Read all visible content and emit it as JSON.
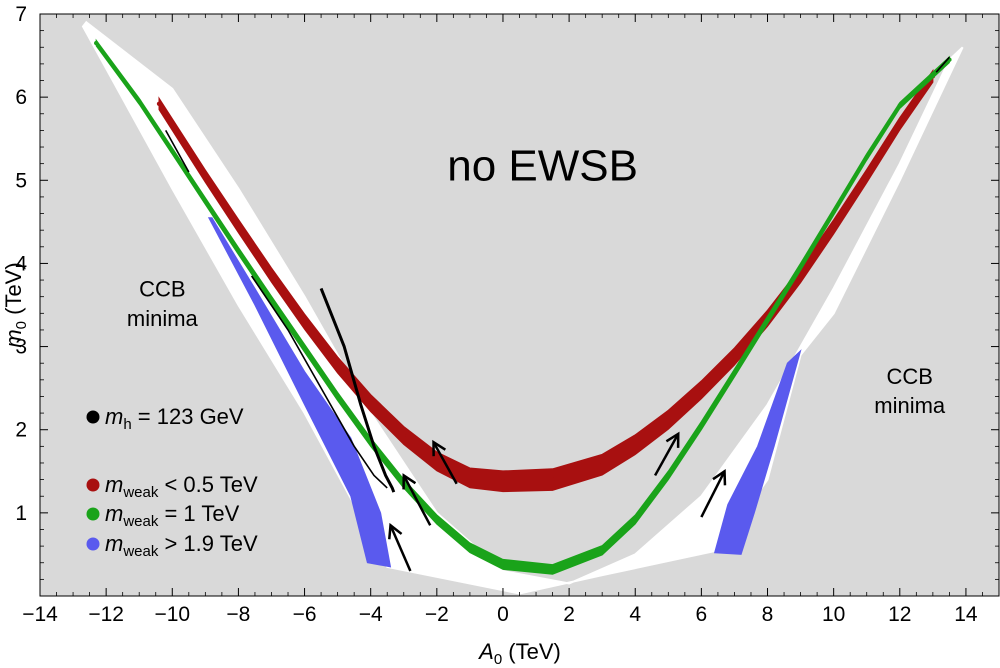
{
  "chart_data": {
    "type": "scatter",
    "title": "",
    "xlabel": {
      "var": "A",
      "sub": "0",
      "unit": " (TeV)"
    },
    "ylabel": {
      "var": "m",
      "sub": "0",
      "unit": " (TeV)"
    },
    "xlim": [
      -14,
      15
    ],
    "ylim": [
      0,
      7
    ],
    "xticks": [
      -14,
      -12,
      -10,
      -8,
      -6,
      -4,
      -2,
      0,
      2,
      4,
      6,
      8,
      10,
      12,
      14
    ],
    "yticks": [
      1,
      2,
      3,
      4,
      5,
      6,
      7
    ],
    "x_tick_labels": [
      "−14",
      "−12",
      "−10",
      "−8",
      "−6",
      "−4",
      "−2",
      "0",
      "2",
      "4",
      "6",
      "8",
      "10",
      "12",
      "14"
    ],
    "y_tick_labels": [
      "1",
      "2",
      "3",
      "4",
      "5",
      "6",
      "7"
    ],
    "regions": [
      {
        "name": "allowed",
        "color": "#ffffff",
        "outline": [
          [
            -12.7,
            6.85
          ],
          [
            -10,
            4.9
          ],
          [
            -8,
            3.5
          ],
          [
            -6,
            2.2
          ],
          [
            -4.5,
            1.1
          ],
          [
            -3.5,
            0.35
          ],
          [
            0.5,
            0.03
          ],
          [
            3,
            0.25
          ],
          [
            6.5,
            0.55
          ],
          [
            8,
            1.4
          ],
          [
            9,
            2.9
          ],
          [
            10,
            3.4
          ],
          [
            12,
            5.0
          ],
          [
            13.9,
            6.6
          ],
          [
            13.5,
            6.45
          ],
          [
            12,
            5.2
          ],
          [
            10,
            3.7
          ],
          [
            8,
            2.3
          ],
          [
            6,
            1.2
          ],
          [
            4,
            0.5
          ],
          [
            2,
            0.15
          ],
          [
            0,
            0.3
          ],
          [
            -2,
            1.0
          ],
          [
            -4,
            2.2
          ],
          [
            -6,
            3.6
          ],
          [
            -8,
            4.9
          ],
          [
            -10,
            6.1
          ],
          [
            -12.6,
            6.9
          ]
        ]
      }
    ],
    "series": [
      {
        "name": "m_weak < 0.5 TeV",
        "color": "#a81010",
        "points": [
          [
            -10.4,
            5.92
          ],
          [
            -9,
            5.05
          ],
          [
            -8,
            4.45
          ],
          [
            -7,
            3.86
          ],
          [
            -6,
            3.3
          ],
          [
            -5,
            2.78
          ],
          [
            -4,
            2.32
          ],
          [
            -3,
            1.93
          ],
          [
            -2,
            1.62
          ],
          [
            -1,
            1.42
          ],
          [
            0,
            1.38
          ],
          [
            1.5,
            1.4
          ],
          [
            3,
            1.58
          ],
          [
            4,
            1.82
          ],
          [
            5,
            2.12
          ],
          [
            6,
            2.48
          ],
          [
            7,
            2.88
          ],
          [
            8,
            3.34
          ],
          [
            9,
            3.86
          ],
          [
            10,
            4.44
          ],
          [
            11,
            5.05
          ],
          [
            12,
            5.68
          ],
          [
            13,
            6.25
          ]
        ],
        "width": [
          0.07,
          0.13
        ]
      },
      {
        "name": "m_weak = 1 TeV",
        "color": "#1aa31a",
        "points": [
          [
            -12.3,
            6.65
          ],
          [
            -11,
            5.95
          ],
          [
            -10,
            5.35
          ],
          [
            -9,
            4.75
          ],
          [
            -8,
            4.15
          ],
          [
            -7,
            3.56
          ],
          [
            -6,
            2.98
          ],
          [
            -5,
            2.4
          ],
          [
            -4,
            1.85
          ],
          [
            -3,
            1.35
          ],
          [
            -2,
            0.92
          ],
          [
            -1,
            0.58
          ],
          [
            0,
            0.38
          ],
          [
            1.5,
            0.32
          ],
          [
            3,
            0.55
          ],
          [
            4,
            0.92
          ],
          [
            5,
            1.45
          ],
          [
            6,
            2.05
          ],
          [
            7,
            2.68
          ],
          [
            8,
            3.32
          ],
          [
            9,
            3.96
          ],
          [
            10,
            4.62
          ],
          [
            11,
            5.28
          ],
          [
            12,
            5.9
          ],
          [
            13.5,
            6.45
          ]
        ],
        "width": [
          0.035,
          0.06
        ]
      },
      {
        "name": "m_weak > 1.9 TeV",
        "color": "#5a5aee",
        "bands": [
          [
            [
              -8.9,
              4.55
            ],
            [
              -7.5,
              3.5
            ],
            [
              -6,
              2.3
            ],
            [
              -4.6,
              1.2
            ],
            [
              -4.1,
              0.4
            ],
            [
              -3.4,
              0.35
            ],
            [
              -3.7,
              1.0
            ],
            [
              -4.6,
              1.9
            ],
            [
              -6,
              2.7
            ],
            [
              -7.5,
              3.7
            ],
            [
              -8.8,
              4.55
            ]
          ],
          [
            [
              6.4,
              0.52
            ],
            [
              7.2,
              0.5
            ],
            [
              7.6,
              1.0
            ],
            [
              8.2,
              1.8
            ],
            [
              9.0,
              2.95
            ],
            [
              8.6,
              2.8
            ],
            [
              7.7,
              1.8
            ],
            [
              6.8,
              1.1
            ]
          ]
        ]
      },
      {
        "name": "m_h = 123 GeV",
        "color": "#000000",
        "lines": [
          [
            [
              -5.5,
              3.7
            ],
            [
              -4.8,
              3.0
            ],
            [
              -4.3,
              2.3
            ],
            [
              -3.9,
              1.8
            ],
            [
              -3.55,
              1.45
            ],
            [
              -3.35,
              1.3
            ],
            [
              -3.3,
              1.25
            ]
          ],
          [
            [
              -7.6,
              3.85
            ],
            [
              -6.5,
              3.2
            ],
            [
              -5.5,
              2.5
            ],
            [
              -4.5,
              1.8
            ],
            [
              -3.9,
              1.45
            ],
            [
              -3.5,
              1.3
            ]
          ],
          [
            [
              -10.2,
              5.6
            ],
            [
              -9.5,
              5.1
            ]
          ],
          [
            [
              13.1,
              6.3
            ],
            [
              13.5,
              6.48
            ]
          ]
        ]
      }
    ],
    "arrows": [
      [
        [
          -2.8,
          0.3
        ],
        [
          -3.4,
          0.85
        ]
      ],
      [
        [
          -2.2,
          0.85
        ],
        [
          -3.0,
          1.45
        ]
      ],
      [
        [
          -1.4,
          1.35
        ],
        [
          -2.1,
          1.85
        ]
      ],
      [
        [
          4.6,
          1.45
        ],
        [
          5.3,
          1.95
        ]
      ],
      [
        [
          6.0,
          0.95
        ],
        [
          6.7,
          1.5
        ]
      ]
    ],
    "annotations": [
      {
        "text": "no EWSB",
        "x": 1.2,
        "y": 5.0,
        "size": "large"
      },
      {
        "text": "CCB",
        "x": -10.3,
        "y": 3.6,
        "size": "normal"
      },
      {
        "text": "minima",
        "x": -10.3,
        "y": 3.25,
        "size": "normal"
      },
      {
        "text": "CCB",
        "x": 12.3,
        "y": 2.55,
        "size": "normal"
      },
      {
        "text": "minima",
        "x": 12.3,
        "y": 2.2,
        "size": "normal"
      }
    ],
    "legend": {
      "placement": "left",
      "entries": [
        {
          "var": "m",
          "sub": "h",
          "rest": " = 123 GeV",
          "color": "#000000"
        },
        {
          "var": "m",
          "sub": "weak",
          "rest": " < 0.5 TeV",
          "color": "#a81010"
        },
        {
          "var": "m",
          "sub": "weak",
          "rest": " = 1 TeV",
          "color": "#1aa31a"
        },
        {
          "var": "m",
          "sub": "weak",
          "rest": " > 1.9 TeV",
          "color": "#5a5aee"
        }
      ]
    },
    "background": "#d9d9d9",
    "grid": false
  }
}
